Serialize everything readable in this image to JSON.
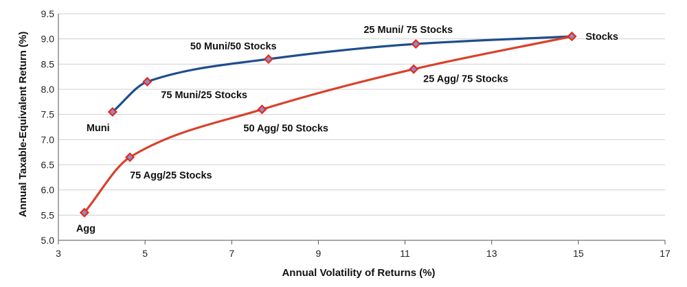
{
  "chart_data": {
    "type": "line",
    "title": "",
    "xlabel": "Annual Volatility of Returns (%)",
    "ylabel": "Annual Taxable-Equivalent Return (%)",
    "xlim": [
      3,
      17
    ],
    "ylim": [
      5.0,
      9.5
    ],
    "xticks": [
      "3",
      "5",
      "7",
      "9",
      "11",
      "13",
      "15",
      "17"
    ],
    "yticks": [
      "5.0",
      "5.5",
      "6.0",
      "6.5",
      "7.0",
      "7.5",
      "8.0",
      "8.5",
      "9.0",
      "9.5"
    ],
    "grid": "horizontal",
    "legend": "none",
    "series": [
      {
        "color": "#1f4e8c",
        "points": [
          {
            "label": "Muni",
            "x": 4.25,
            "y": 7.55
          },
          {
            "label": "75 Muni/25 Stocks",
            "x": 5.05,
            "y": 8.15
          },
          {
            "label": "50 Muni/50 Stocks",
            "x": 7.85,
            "y": 8.6
          },
          {
            "label": "25 Muni/ 75 Stocks",
            "x": 11.25,
            "y": 8.9
          },
          {
            "label": "Stocks",
            "x": 14.85,
            "y": 9.05
          }
        ]
      },
      {
        "color": "#d9412b",
        "points": [
          {
            "label": "Agg",
            "x": 3.6,
            "y": 5.55
          },
          {
            "label": "75 Agg/25 Stocks",
            "x": 4.65,
            "y": 6.65
          },
          {
            "label": "50 Agg/ 50 Stocks",
            "x": 7.7,
            "y": 7.6
          },
          {
            "label": "25 Agg/ 75 Stocks",
            "x": 11.2,
            "y": 8.4
          },
          {
            "label": "Stocks",
            "x": 14.85,
            "y": 9.05
          }
        ]
      }
    ]
  },
  "marker_fill": "#8a8fc8",
  "marker_stroke": "#e8281e"
}
